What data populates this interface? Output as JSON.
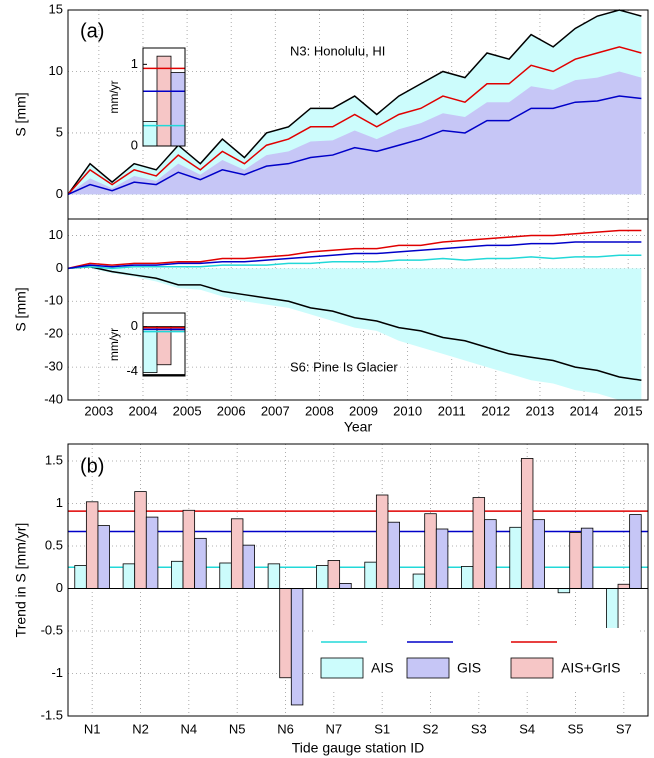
{
  "chart_data": [
    {
      "type": "line",
      "annotations": [
        "(a)",
        "N3: Honolulu, HI"
      ],
      "y_label": "S [mm]",
      "x": [
        2002.3,
        2002.8,
        2003.3,
        2003.8,
        2004.3,
        2004.8,
        2005.3,
        2005.8,
        2006.3,
        2006.8,
        2007.3,
        2007.8,
        2008.3,
        2008.8,
        2009.3,
        2009.8,
        2010.3,
        2010.8,
        2011.3,
        2011.8,
        2012.3,
        2012.8,
        2013.3,
        2013.8,
        2014.3,
        2014.8,
        2015.3
      ],
      "xlim": [
        2002.3,
        2015.45
      ],
      "xticks": [
        2003,
        2004,
        2005,
        2006,
        2007,
        2008,
        2009,
        2010,
        2011,
        2012,
        2013,
        2014,
        2015
      ],
      "xtick_labels": false,
      "ylim": [
        -2,
        15
      ],
      "yticks": [
        0,
        5,
        10,
        15
      ],
      "grid": true,
      "series": [
        {
          "color": "#000000",
          "fill": "#ccfcfc",
          "values": [
            0,
            2.5,
            1.0,
            2.5,
            2.0,
            4.0,
            2.5,
            4.5,
            3.0,
            5.0,
            5.5,
            7.0,
            7.0,
            8.0,
            6.5,
            8.0,
            9.0,
            10.0,
            9.5,
            11.5,
            11.0,
            13.0,
            12.0,
            13.5,
            14.5,
            15.0,
            14.5
          ]
        },
        {
          "fill": "#c6c6f6",
          "values": [
            0,
            1.3,
            0.5,
            1.5,
            1.1,
            2.5,
            1.6,
            2.8,
            2.0,
            3.2,
            3.5,
            4.3,
            4.4,
            5.2,
            4.5,
            5.3,
            5.8,
            6.6,
            6.3,
            7.5,
            7.5,
            8.8,
            8.5,
            9.3,
            9.5,
            10.0,
            9.5
          ]
        },
        {
          "color": "#e00000",
          "values": [
            0,
            2.0,
            0.8,
            2.0,
            1.5,
            3.2,
            2.0,
            3.5,
            2.5,
            4.0,
            4.5,
            5.5,
            5.5,
            6.5,
            5.5,
            6.5,
            7.0,
            8.0,
            7.5,
            9.0,
            9.0,
            10.5,
            10.0,
            11.0,
            11.5,
            12.0,
            11.5
          ]
        },
        {
          "color": "#0000c8",
          "values": [
            0,
            0.8,
            0.3,
            1.0,
            0.8,
            1.8,
            1.2,
            2.0,
            1.6,
            2.3,
            2.5,
            3.0,
            3.2,
            3.8,
            3.5,
            4.0,
            4.5,
            5.2,
            5.0,
            6.0,
            6.0,
            7.0,
            7.0,
            7.5,
            7.6,
            8.0,
            7.8
          ]
        }
      ]
    },
    {
      "type": "line",
      "annotations": [
        "S6: Pine Is Glacier"
      ],
      "y_label": "S [mm]",
      "x_label": "Year",
      "x": [
        2002.3,
        2002.8,
        2003.3,
        2003.8,
        2004.3,
        2004.8,
        2005.3,
        2005.8,
        2006.3,
        2006.8,
        2007.3,
        2007.8,
        2008.3,
        2008.8,
        2009.3,
        2009.8,
        2010.3,
        2010.8,
        2011.3,
        2011.8,
        2012.3,
        2012.8,
        2013.3,
        2013.8,
        2014.3,
        2014.8,
        2015.3
      ],
      "xlim": [
        2002.3,
        2015.45
      ],
      "xticks": [
        2003,
        2004,
        2005,
        2006,
        2007,
        2008,
        2009,
        2010,
        2011,
        2012,
        2013,
        2014,
        2015
      ],
      "ylim": [
        -40,
        15
      ],
      "yticks": [
        -40,
        -30,
        -20,
        -10,
        0,
        10
      ],
      "grid": true,
      "series": [
        {
          "fill": "#ccfcfc",
          "values": [
            0,
            0,
            -1.5,
            -2.5,
            -4,
            -6,
            -6.5,
            -8.5,
            -10,
            -11,
            -12,
            -14,
            -16,
            -18,
            -19,
            -22,
            -24,
            -26,
            -28,
            -30,
            -32,
            -34,
            -35,
            -37,
            -38,
            -40,
            -40
          ]
        },
        {
          "color": "#000000",
          "values": [
            0,
            0.5,
            -1,
            -2,
            -3,
            -5,
            -5,
            -7,
            -8,
            -9,
            -10,
            -12,
            -13,
            -15,
            -16,
            -18,
            -19,
            -21,
            -22,
            -24,
            -26,
            -27,
            -28,
            -30,
            -31,
            -33,
            -34
          ]
        },
        {
          "color": "#22d8d8",
          "values": [
            0,
            0.5,
            0,
            0.5,
            0.5,
            0.5,
            0.5,
            1,
            1,
            1,
            1.5,
            1.5,
            2,
            2,
            2,
            2.5,
            2.5,
            3,
            2.5,
            3,
            3,
            3.5,
            3,
            3.5,
            3.5,
            4,
            4
          ]
        },
        {
          "color": "#e00000",
          "values": [
            0,
            1.5,
            1,
            1.5,
            1.5,
            2,
            2,
            3,
            3,
            3.5,
            4,
            5,
            5.5,
            6,
            6,
            7,
            7,
            8,
            8.5,
            9,
            9.5,
            10,
            10,
            10.5,
            11,
            11.5,
            11.5
          ]
        },
        {
          "color": "#0000c8",
          "values": [
            0,
            1,
            0.5,
            1,
            1,
            1.5,
            1.5,
            2,
            2,
            2.5,
            3,
            3.5,
            4,
            4.5,
            4.5,
            5,
            5.5,
            6,
            6.5,
            7,
            7,
            7.5,
            7.5,
            8,
            8,
            8,
            8
          ]
        }
      ]
    },
    {
      "type": "inset-bar",
      "y_label": "mm/yr",
      "ylim": [
        0,
        1.2
      ],
      "yticks": [
        0,
        1
      ],
      "values": [
        0.3,
        1.1,
        0.9
      ],
      "colors": [
        "#ccfcfc",
        "#f6c6c6",
        "#c6c6f6"
      ],
      "hlines": [
        {
          "value": 0.95,
          "color": "#e00000"
        },
        {
          "value": 0.67,
          "color": "#0000c8"
        },
        {
          "value": 0.25,
          "color": "#22d8d8"
        }
      ]
    },
    {
      "type": "inset-bar",
      "y_label": "mm/yr",
      "ylim": [
        -4.4,
        1.2
      ],
      "yticks": [
        -4,
        0
      ],
      "values": [
        -4.1,
        -3.4,
        -0.3
      ],
      "colors": [
        "#ccfcfc",
        "#f6c6c6",
        "#c6c6f6"
      ],
      "hlines": [
        {
          "value": -0.1,
          "color": "#e00000"
        },
        {
          "value": -0.25,
          "color": "#0000c8"
        },
        {
          "value": -0.45,
          "color": "#22d8d8"
        },
        {
          "value": -4.3,
          "color": "#000000"
        }
      ]
    },
    {
      "type": "bar",
      "annotations": [
        "(b)"
      ],
      "y_label": "Trend in S [mm/yr]",
      "x_label": "Tide gauge station ID",
      "categories": [
        "N1",
        "N2",
        "N4",
        "N5",
        "N6",
        "N7",
        "S1",
        "S2",
        "S3",
        "S4",
        "S5",
        "S7"
      ],
      "ylim": [
        -1.5,
        1.7
      ],
      "yticks": [
        -1.5,
        -1,
        -0.5,
        0,
        0.5,
        1,
        1.5
      ],
      "grid": true,
      "legend": "lower right",
      "series": [
        {
          "name": "AIS",
          "color": "#ccfcfc",
          "line_color": "#22d8d8",
          "mean": 0.25,
          "values": [
            0.27,
            0.29,
            0.32,
            0.3,
            0.29,
            0.27,
            0.31,
            0.17,
            0.26,
            0.72,
            -0.05,
            -0.83
          ]
        },
        {
          "name": "AIS+GrIS",
          "color": "#f6c6c6",
          "line_color": "#e00000",
          "mean": 0.91,
          "values": [
            1.02,
            1.14,
            0.92,
            0.82,
            -1.05,
            0.33,
            1.1,
            0.88,
            1.07,
            1.53,
            0.66,
            0.05
          ]
        },
        {
          "name": "GIS",
          "color": "#c6c6f6",
          "line_color": "#0000c8",
          "mean": 0.67,
          "values": [
            0.74,
            0.84,
            0.59,
            0.51,
            -1.37,
            0.06,
            0.78,
            0.7,
            0.81,
            0.81,
            0.71,
            0.87
          ]
        }
      ]
    }
  ]
}
